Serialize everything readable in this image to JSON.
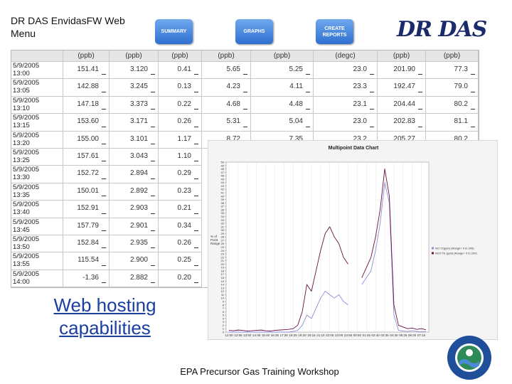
{
  "header": {
    "title": "DR DAS EnvidasFW Web Menu",
    "buttons": [
      "SUMMARY",
      "GRAPHS",
      "CREATE REPORTS"
    ],
    "logo": "DR DAS"
  },
  "table": {
    "units": [
      "(ppb)",
      "(ppb)",
      "(ppb)",
      "(ppb)",
      "(ppb)",
      "(degc)",
      "(ppb)",
      "(ppb)"
    ],
    "rows": [
      {
        "date": "5/9/2005",
        "time": "13:00",
        "cells": [
          "151.41",
          "3.120",
          "0.41",
          "5.65",
          "5.25",
          "23.0",
          "201.90",
          "77.3"
        ]
      },
      {
        "date": "5/9/2005",
        "time": "13:05",
        "cells": [
          "142.88",
          "3.245",
          "0.13",
          "4.23",
          "4.11",
          "23.3",
          "192.47",
          "79.0"
        ]
      },
      {
        "date": "5/9/2005",
        "time": "13:10",
        "cells": [
          "147.18",
          "3.373",
          "0.22",
          "4.68",
          "4.48",
          "23.1",
          "204.44",
          "80.2"
        ]
      },
      {
        "date": "5/9/2005",
        "time": "13:15",
        "cells": [
          "153.60",
          "3.171",
          "0.26",
          "5.31",
          "5.04",
          "23.0",
          "202.83",
          "81.1"
        ]
      },
      {
        "date": "5/9/2005",
        "time": "13:20",
        "cells": [
          "155.00",
          "3.101",
          "1.17",
          "8.72",
          "7.35",
          "23.2",
          "205.27",
          "80.2"
        ]
      },
      {
        "date": "5/9/2005",
        "time": "13:25",
        "cells": [
          "157.61",
          "3.043",
          "1.10"
        ]
      },
      {
        "date": "5/9/2005",
        "time": "13:30",
        "cells": [
          "152.72",
          "2.894",
          "0.29"
        ]
      },
      {
        "date": "5/9/2005",
        "time": "13:35",
        "cells": [
          "150.01",
          "2.892",
          "0.23"
        ]
      },
      {
        "date": "5/9/2005",
        "time": "13:40",
        "cells": [
          "152.91",
          "2.903",
          "0.21"
        ]
      },
      {
        "date": "5/9/2005",
        "time": "13:45",
        "cells": [
          "157.79",
          "2.901",
          "0.34"
        ]
      },
      {
        "date": "5/9/2005",
        "time": "13:50",
        "cells": [
          "152.84",
          "2.935",
          "0.26"
        ]
      },
      {
        "date": "5/9/2005",
        "time": "13:55",
        "cells": [
          "115.54",
          "2.900",
          "0.25"
        ]
      },
      {
        "date": "5/9/2005",
        "time": "14:00",
        "cells": [
          "-1.36",
          "2.882",
          "0.20"
        ]
      }
    ]
  },
  "chart_data": {
    "type": "line",
    "title": "Multipoint Data Chart",
    "y_label": "% of Point Range",
    "categories": [
      "12:00",
      null,
      "12:55",
      null,
      "13:50",
      null,
      "14:45",
      null,
      "15:40",
      null,
      "16:35",
      null,
      "17:30",
      null,
      "18:25",
      null,
      "19:20",
      null,
      "20:15",
      null,
      "21:10",
      null,
      "22:05",
      null,
      "23:00",
      null,
      "23:55",
      null,
      "00:50",
      null,
      "01:45",
      null,
      "02:40",
      null,
      "03:35",
      null,
      "04:30",
      null,
      "05:25",
      null,
      "06:20",
      null,
      "07:15",
      null
    ],
    "series": [
      {
        "name": "NO T2(ppb) (Range= 0 to 200)",
        "color": "#8c8cdc",
        "values": [
          0,
          0,
          0,
          0,
          0,
          0,
          0,
          0,
          0,
          0,
          0,
          0,
          0,
          0,
          0.2,
          0.5,
          2,
          5,
          4,
          7,
          10,
          12,
          11,
          10,
          11,
          9,
          8,
          null,
          null,
          14,
          16,
          18,
          24,
          32,
          44,
          38,
          5,
          0.5,
          0.3,
          0.2,
          0.4,
          0.2,
          0.1,
          0.2
        ]
      },
      {
        "name": "NOY-TE (ppb) (Range= 0 to 200)",
        "color": "#6b1040",
        "values": [
          0.5,
          0.4,
          0.6,
          0.5,
          0.3,
          0.4,
          0.5,
          0.6,
          0.4,
          0.3,
          0.5,
          0.6,
          0.7,
          0.8,
          1,
          2,
          6,
          14,
          12,
          18,
          24,
          29,
          31,
          28,
          26,
          22,
          20,
          null,
          null,
          16,
          19,
          22,
          28,
          36,
          48,
          40,
          8,
          2,
          1.5,
          1,
          1.2,
          0.8,
          1,
          0.7
        ]
      }
    ],
    "ylim": [
      0,
      50
    ],
    "yticks": [
      0,
      1,
      2,
      3,
      4,
      5,
      6,
      7,
      8,
      9,
      10,
      11,
      12,
      13,
      14,
      15,
      16,
      17,
      18,
      19,
      20,
      21,
      22,
      23,
      24,
      25,
      26,
      27,
      28,
      29,
      30,
      31,
      32,
      33,
      34,
      35,
      36,
      37,
      38,
      39,
      40,
      41,
      42,
      43,
      44,
      45,
      46,
      47,
      48,
      49,
      50
    ],
    "legend": "right"
  },
  "link": "Web hosting capabilities",
  "footer": "EPA Precursor Gas Training Workshop"
}
